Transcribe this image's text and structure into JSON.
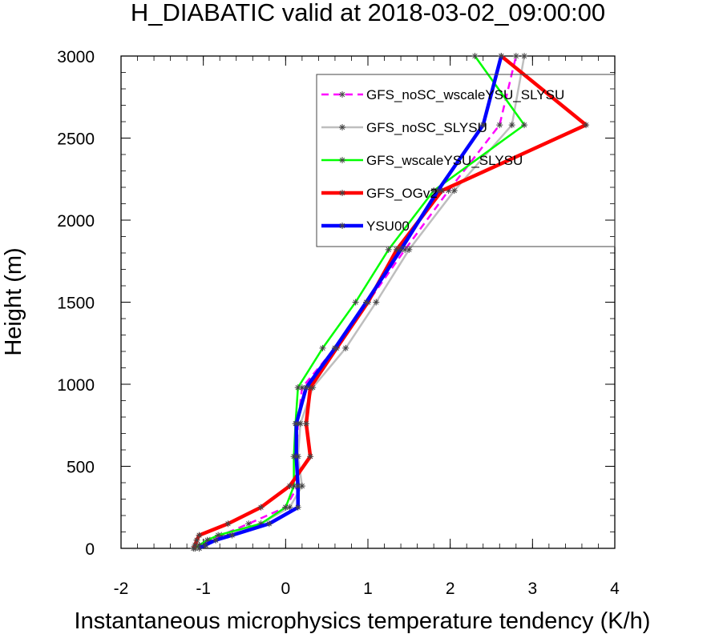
{
  "chart_data": {
    "type": "line",
    "title": "H_DIABATIC valid at 2018-03-02_09:00:00",
    "xlabel": "Instantaneous microphysics temperature tendency (K/h)",
    "ylabel": "Height (m)",
    "xlim": [
      -2,
      4
    ],
    "ylim": [
      0,
      3000
    ],
    "xticks": [
      "-2",
      "-1",
      "0",
      "1",
      "2",
      "3",
      "4"
    ],
    "yticks": [
      "0",
      "500",
      "1000",
      "1500",
      "2000",
      "2500",
      "3000"
    ],
    "xtick_values": [
      -2,
      -1,
      0,
      1,
      2,
      3,
      4
    ],
    "ytick_values": [
      0,
      500,
      1000,
      1500,
      2000,
      2500,
      3000
    ],
    "grid": false,
    "legend_position": "top-right",
    "heights": [
      0,
      20,
      50,
      80,
      150,
      250,
      380,
      560,
      760,
      980,
      1220,
      1500,
      1820,
      2180,
      2580,
      3000
    ],
    "series": [
      {
        "name": "GFS_noSC_wscaleYSU_SLYSU",
        "color": "#ff00ff",
        "dashed": true,
        "values": [
          -1.1,
          -1.05,
          -0.92,
          -0.78,
          -0.45,
          0.0,
          0.15,
          0.13,
          0.15,
          0.2,
          0.6,
          1.0,
          1.45,
          1.98,
          2.6,
          2.8
        ]
      },
      {
        "name": "GFS_noSC_SLYSU",
        "color": "#bebebe",
        "dashed": false,
        "values": [
          -1.05,
          -0.97,
          -0.85,
          -0.7,
          -0.3,
          0.05,
          0.2,
          0.15,
          0.18,
          0.33,
          0.73,
          1.1,
          1.5,
          2.05,
          2.75,
          2.9
        ]
      },
      {
        "name": "GFS_wscaleYSU_SLYSU",
        "color": "#00ff00",
        "dashed": false,
        "values": [
          -1.1,
          -1.05,
          -0.95,
          -0.82,
          -0.3,
          0.0,
          0.1,
          0.1,
          0.12,
          0.15,
          0.45,
          0.85,
          1.25,
          1.8,
          2.9,
          2.3
        ]
      },
      {
        "name": "GFS_OGv2",
        "color": "#ff0000",
        "dashed": false,
        "values": [
          -1.12,
          -1.1,
          -1.08,
          -1.05,
          -0.7,
          -0.3,
          0.05,
          0.3,
          0.25,
          0.3,
          0.62,
          1.0,
          1.35,
          1.9,
          3.65,
          2.62
        ]
      },
      {
        "name": "YSU00",
        "color": "#0000ff",
        "dashed": false,
        "values": [
          -1.05,
          -0.98,
          -0.85,
          -0.65,
          -0.2,
          0.15,
          0.15,
          0.13,
          0.13,
          0.25,
          0.6,
          0.98,
          1.4,
          1.85,
          2.4,
          2.62
        ]
      }
    ]
  }
}
